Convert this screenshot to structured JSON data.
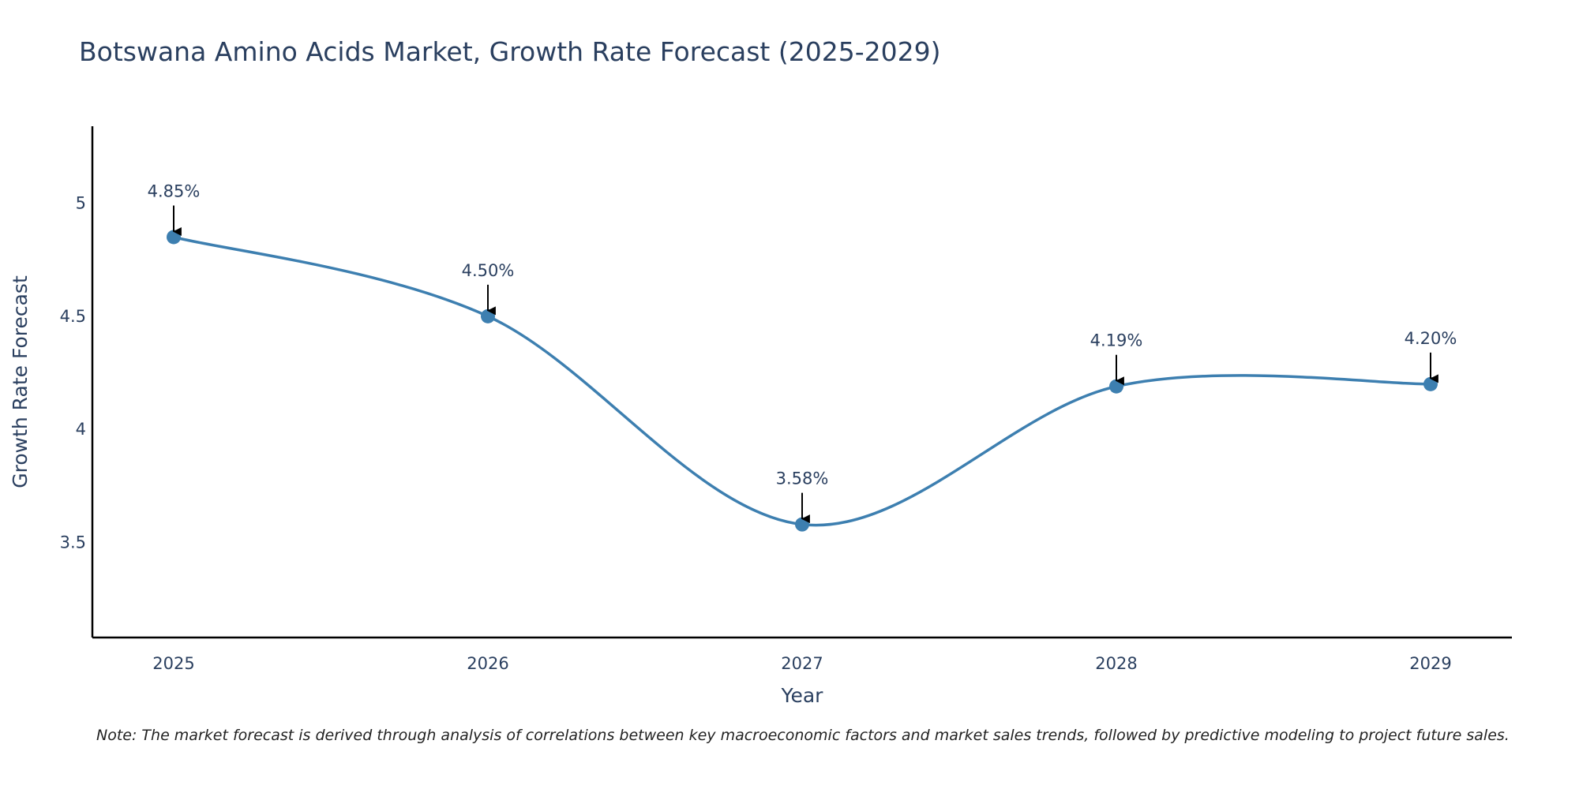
{
  "chart_data": {
    "type": "line",
    "title": "Botswana Amino Acids Market, Growth Rate Forecast (2025-2029)",
    "xlabel": "Year",
    "ylabel": "Growth Rate Forecast",
    "categories": [
      "2025",
      "2026",
      "2027",
      "2028",
      "2029"
    ],
    "values": [
      4.85,
      4.5,
      3.58,
      4.19,
      4.2
    ],
    "data_labels": [
      "4.85%",
      "4.50%",
      "3.58%",
      "4.19%",
      "4.20%"
    ],
    "yticks": [
      3.5,
      4,
      4.5,
      5
    ],
    "ytick_labels": [
      "3.5",
      "4",
      "4.5",
      "5"
    ],
    "ylim": [
      3.08,
      5.34
    ],
    "grid": false,
    "line_shape": "spline",
    "line_color": "#3d7fb0",
    "marker_color": "#3d7fb0",
    "annotation_arrow_color": "#000000",
    "text_color": "#2a3f5f",
    "note": "Note: The market forecast is derived through analysis of correlations between key macroeconomic factors and market sales trends, followed by predictive modeling to project future sales."
  }
}
